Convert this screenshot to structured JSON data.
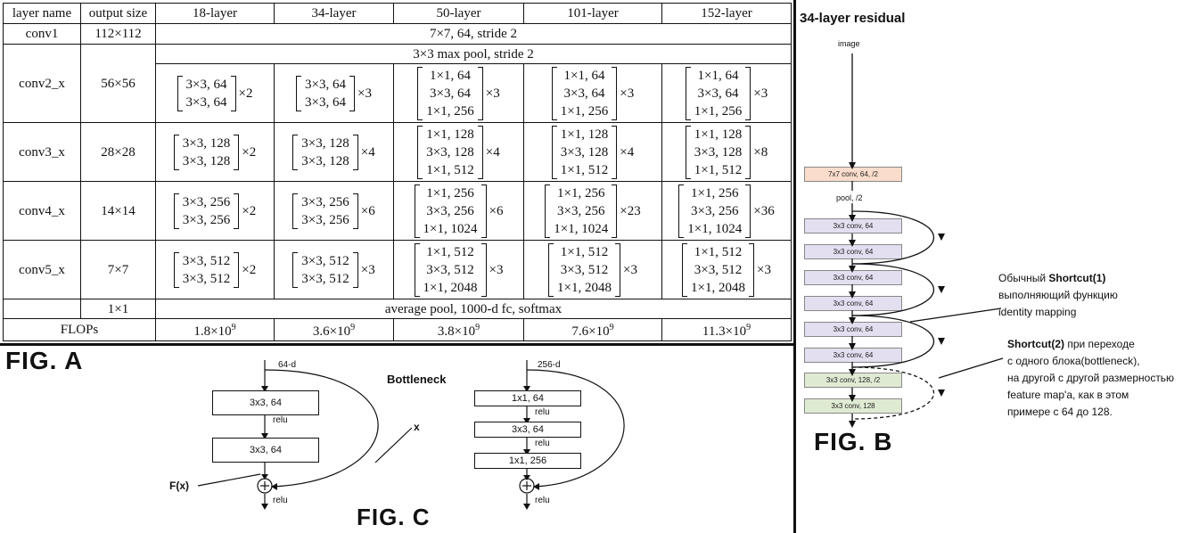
{
  "fig_a": {
    "label": "FIG. A",
    "headers": [
      "layer name",
      "output size",
      "18-layer",
      "34-layer",
      "50-layer",
      "101-layer",
      "152-layer"
    ],
    "conv1": {
      "name": "conv1",
      "size": "112×112",
      "desc": "7×7, 64, stride 2"
    },
    "maxpool": "3×3 max pool, stride 2",
    "conv_rows": [
      {
        "name": "conv2_x",
        "size": "56×56",
        "cells": [
          {
            "lines": [
              "3×3, 64",
              "3×3, 64"
            ],
            "mult": "×2"
          },
          {
            "lines": [
              "3×3, 64",
              "3×3, 64"
            ],
            "mult": "×3"
          },
          {
            "lines": [
              "1×1, 64",
              "3×3, 64",
              "1×1, 256"
            ],
            "mult": "×3"
          },
          {
            "lines": [
              "1×1, 64",
              "3×3, 64",
              "1×1, 256"
            ],
            "mult": "×3"
          },
          {
            "lines": [
              "1×1, 64",
              "3×3, 64",
              "1×1, 256"
            ],
            "mult": "×3"
          }
        ]
      },
      {
        "name": "conv3_x",
        "size": "28×28",
        "cells": [
          {
            "lines": [
              "3×3, 128",
              "3×3, 128"
            ],
            "mult": "×2"
          },
          {
            "lines": [
              "3×3, 128",
              "3×3, 128"
            ],
            "mult": "×4"
          },
          {
            "lines": [
              "1×1, 128",
              "3×3, 128",
              "1×1, 512"
            ],
            "mult": "×4"
          },
          {
            "lines": [
              "1×1, 128",
              "3×3, 128",
              "1×1, 512"
            ],
            "mult": "×4"
          },
          {
            "lines": [
              "1×1, 128",
              "3×3, 128",
              "1×1, 512"
            ],
            "mult": "×8"
          }
        ]
      },
      {
        "name": "conv4_x",
        "size": "14×14",
        "cells": [
          {
            "lines": [
              "3×3, 256",
              "3×3, 256"
            ],
            "mult": "×2"
          },
          {
            "lines": [
              "3×3, 256",
              "3×3, 256"
            ],
            "mult": "×6"
          },
          {
            "lines": [
              "1×1, 256",
              "3×3, 256",
              "1×1, 1024"
            ],
            "mult": "×6"
          },
          {
            "lines": [
              "1×1, 256",
              "3×3, 256",
              "1×1, 1024"
            ],
            "mult": "×23"
          },
          {
            "lines": [
              "1×1, 256",
              "3×3, 256",
              "1×1, 1024"
            ],
            "mult": "×36"
          }
        ]
      },
      {
        "name": "conv5_x",
        "size": "7×7",
        "cells": [
          {
            "lines": [
              "3×3, 512",
              "3×3, 512"
            ],
            "mult": "×2"
          },
          {
            "lines": [
              "3×3, 512",
              "3×3, 512"
            ],
            "mult": "×3"
          },
          {
            "lines": [
              "1×1, 512",
              "3×3, 512",
              "1×1, 2048"
            ],
            "mult": "×3"
          },
          {
            "lines": [
              "1×1, 512",
              "3×3, 512",
              "1×1, 2048"
            ],
            "mult": "×3"
          },
          {
            "lines": [
              "1×1, 512",
              "3×3, 512",
              "1×1, 2048"
            ],
            "mult": "×3"
          }
        ]
      }
    ],
    "final": {
      "size": "1×1",
      "desc": "average pool, 1000-d fc, softmax"
    },
    "flops": {
      "label": "FLOPs",
      "values": [
        "1.8×10",
        "3.6×10",
        "3.8×10",
        "7.6×10",
        "11.3×10"
      ],
      "exp": "9"
    }
  },
  "fig_b": {
    "label": "FIG. B",
    "title": "34-layer residual",
    "input": "image",
    "pool": "pool, /2",
    "blocks": [
      {
        "text": "7x7 conv, 64, /2",
        "color": "#f9dccb"
      },
      {
        "text": "3x3 conv, 64",
        "color": "#e3def0"
      },
      {
        "text": "3x3 conv, 64",
        "color": "#e3def0"
      },
      {
        "text": "3x3 conv, 64",
        "color": "#e3def0"
      },
      {
        "text": "3x3 conv, 64",
        "color": "#e3def0"
      },
      {
        "text": "3x3 conv, 64",
        "color": "#e3def0"
      },
      {
        "text": "3x3 conv, 64",
        "color": "#e3def0"
      },
      {
        "text": "3x3 conv, 128, /2",
        "color": "#dfead3"
      },
      {
        "text": "3x3 conv, 128",
        "color": "#dfead3"
      }
    ],
    "note1": {
      "pre": "Обычный ",
      "bold": "Shortcut",
      "suffix": "(1)",
      "lines": [
        "выполняющий функцию",
        "identity mapping"
      ]
    },
    "note2": {
      "bold": "Shortcut(2)",
      "rest": " при переходе",
      "lines": [
        "с одного блока(bottleneck),",
        "на другой с другой размерностью",
        "feature map'a, как в этом",
        "примере с 64 до 128."
      ]
    }
  },
  "fig_c": {
    "label": "FIG. C",
    "title": "Bottleneck",
    "left": {
      "input": "64-d",
      "box1": "3x3, 64",
      "relu1": "relu",
      "box2": "3x3, 64",
      "relu_out": "relu"
    },
    "right": {
      "input": "256-d",
      "box1": "1x1, 64",
      "relu1": "relu",
      "box2": "3x3, 64",
      "relu2": "relu",
      "box3": "1x1, 256",
      "relu_out": "relu"
    },
    "x_label": "x",
    "fx_label": "F(x)",
    "plus": "+"
  }
}
